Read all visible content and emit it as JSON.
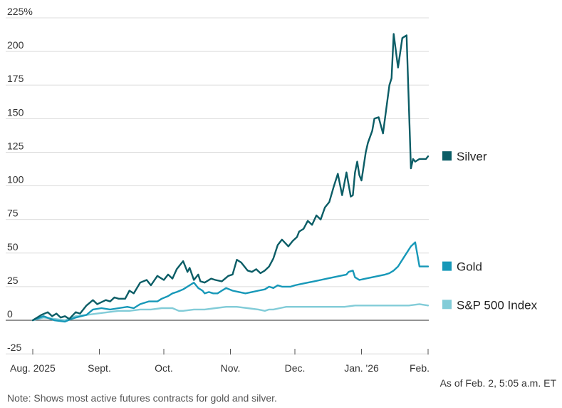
{
  "chart_data": {
    "type": "line",
    "title": "",
    "xlabel": "",
    "ylabel": "",
    "y_unit_suffix": "%",
    "ylim": [
      -25,
      225
    ],
    "yticks": [
      -25,
      0,
      25,
      50,
      75,
      100,
      125,
      150,
      175,
      200,
      225
    ],
    "ytick_labels": [
      "-25",
      "0",
      "25",
      "50",
      "75",
      "100",
      "125",
      "150",
      "175",
      "200",
      "225%"
    ],
    "xlim": [
      0,
      184
    ],
    "x_unit": "days since Aug. 1, 2025",
    "xticks": [
      {
        "day": 0,
        "label": "Aug. 2025"
      },
      {
        "day": 31,
        "label": "Sept."
      },
      {
        "day": 61,
        "label": "Oct."
      },
      {
        "day": 92,
        "label": "Nov."
      },
      {
        "day": 122,
        "label": "Dec."
      },
      {
        "day": 153,
        "label": "Jan. '26"
      },
      {
        "day": 184,
        "label": "Feb."
      }
    ],
    "series": [
      {
        "name": "Silver",
        "color": "#0b5d66",
        "x": [
          0,
          4,
          7,
          9,
          11,
          13,
          15,
          17,
          20,
          22,
          25,
          28,
          30,
          34,
          36,
          38,
          40,
          43,
          45,
          47,
          50,
          53,
          55,
          58,
          61,
          63,
          65,
          67,
          70,
          72,
          73,
          75,
          77,
          78,
          80,
          83,
          85,
          88,
          91,
          93,
          95,
          97,
          100,
          102,
          104,
          106,
          108,
          110,
          112,
          114,
          116,
          119,
          121,
          123,
          124,
          126,
          128,
          130,
          132,
          134,
          136,
          138,
          140,
          142,
          144,
          146,
          148,
          149,
          150,
          151,
          152,
          153,
          155,
          156,
          158,
          159,
          161,
          163,
          166,
          167,
          168,
          170,
          172,
          174,
          176,
          177,
          178,
          180,
          181,
          182,
          183,
          184
        ],
        "y": [
          0,
          4,
          6,
          3,
          5,
          2,
          3,
          1,
          6,
          5,
          11,
          15,
          12,
          15,
          14,
          17,
          16,
          16,
          22,
          20,
          28,
          30,
          26,
          33,
          30,
          34,
          31,
          38,
          44,
          36,
          39,
          30,
          34,
          29,
          28,
          31,
          30,
          29,
          33,
          34,
          45,
          43,
          37,
          36,
          38,
          35,
          37,
          40,
          46,
          56,
          60,
          55,
          59,
          62,
          66,
          68,
          74,
          71,
          78,
          75,
          84,
          88,
          99,
          109,
          93,
          110,
          92,
          93,
          110,
          118,
          108,
          104,
          125,
          132,
          141,
          150,
          151,
          139,
          175,
          180,
          213,
          188,
          210,
          212,
          113,
          120,
          118,
          120,
          120,
          120,
          120,
          122
        ],
        "legend_label": "Silver"
      },
      {
        "name": "Gold",
        "color": "#1798b8",
        "x": [
          0,
          5,
          10,
          15,
          18,
          20,
          25,
          28,
          32,
          36,
          40,
          44,
          47,
          50,
          54,
          58,
          60,
          63,
          65,
          67,
          70,
          73,
          75,
          77,
          79,
          80,
          82,
          84,
          86,
          88,
          90,
          93,
          96,
          99,
          102,
          105,
          108,
          110,
          112,
          114,
          116,
          118,
          120,
          122,
          125,
          128,
          131,
          134,
          137,
          140,
          143,
          146,
          147,
          149,
          150,
          152,
          155,
          158,
          161,
          164,
          166,
          168,
          170,
          172,
          174,
          176,
          178,
          180,
          182,
          184
        ],
        "y": [
          0,
          3,
          0,
          -1,
          1,
          2,
          4,
          8,
          9,
          8,
          9,
          10,
          9,
          12,
          14,
          14,
          16,
          18,
          20,
          21,
          23,
          26,
          28,
          24,
          22,
          20,
          21,
          20,
          20,
          22,
          24,
          22,
          21,
          20,
          21,
          22,
          23,
          25,
          24,
          26,
          25,
          25,
          25,
          26,
          27,
          28,
          29,
          30,
          31,
          32,
          33,
          34,
          36,
          37,
          32,
          30,
          31,
          32,
          33,
          34,
          35,
          37,
          40,
          45,
          50,
          55,
          58,
          40,
          40,
          40
        ],
        "legend_label": "Gold"
      },
      {
        "name": "S&P 500 Index",
        "color": "#82ccd8",
        "x": [
          0,
          5,
          10,
          15,
          20,
          25,
          30,
          35,
          40,
          45,
          50,
          55,
          60,
          65,
          68,
          70,
          75,
          80,
          85,
          90,
          95,
          100,
          105,
          108,
          110,
          112,
          115,
          118,
          120,
          125,
          130,
          135,
          140,
          145,
          150,
          155,
          160,
          165,
          170,
          175,
          180,
          184
        ],
        "y": [
          0,
          2,
          1,
          0,
          3,
          4,
          5,
          6,
          7,
          7,
          8,
          8,
          9,
          9,
          7,
          7,
          8,
          8,
          9,
          10,
          10,
          9,
          8,
          7,
          8,
          8,
          9,
          10,
          10,
          10,
          10,
          10,
          10,
          10,
          11,
          11,
          11,
          11,
          11,
          11,
          12,
          11
        ],
        "legend_label": "S&P 500 Index"
      }
    ],
    "annotations": [
      {
        "text": "As of Feb. 2, 5:05 a.m. ET"
      }
    ]
  },
  "footnote": "Note: Shows most active futures contracts for gold and silver."
}
